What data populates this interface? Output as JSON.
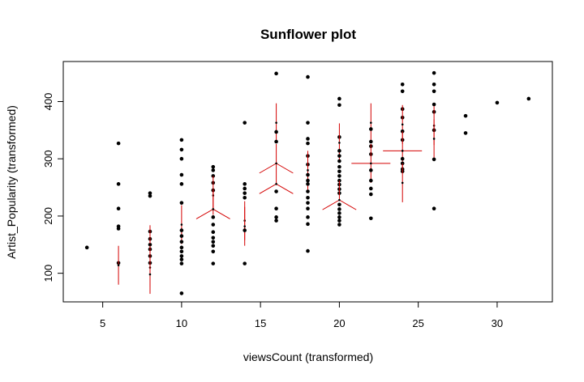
{
  "chart_data": {
    "type": "scatter",
    "subtype": "sunflower",
    "title": "Sunflower plot",
    "xlabel": "viewsCount (transformed)",
    "ylabel": "Artist_Popularity (transformed)",
    "xlim": [
      2.5,
      33.5
    ],
    "ylim": [
      50,
      470
    ],
    "xticks": [
      5,
      10,
      15,
      20,
      25,
      30
    ],
    "yticks": [
      100,
      200,
      300,
      400
    ],
    "grid": false,
    "legend": "none",
    "colors": {
      "point": "#000000",
      "petal": "#d40000",
      "axis": "#000000"
    },
    "points": [
      {
        "x": 4,
        "y": 145,
        "n": 1
      },
      {
        "x": 6,
        "y": 327,
        "n": 1
      },
      {
        "x": 6,
        "y": 256,
        "n": 1
      },
      {
        "x": 6,
        "y": 213,
        "n": 1
      },
      {
        "x": 6,
        "y": 182,
        "n": 1
      },
      {
        "x": 6,
        "y": 178,
        "n": 1
      },
      {
        "x": 6,
        "y": 118,
        "n": 1
      },
      {
        "x": 6,
        "y": 114,
        "n": 2
      },
      {
        "x": 8,
        "y": 240,
        "n": 1
      },
      {
        "x": 8,
        "y": 235,
        "n": 1
      },
      {
        "x": 8,
        "y": 173,
        "n": 1
      },
      {
        "x": 8,
        "y": 160,
        "n": 1
      },
      {
        "x": 8,
        "y": 150,
        "n": 1
      },
      {
        "x": 8,
        "y": 142,
        "n": 1
      },
      {
        "x": 8,
        "y": 130,
        "n": 1
      },
      {
        "x": 8,
        "y": 118,
        "n": 1
      },
      {
        "x": 8,
        "y": 110,
        "n": 2
      },
      {
        "x": 8,
        "y": 98,
        "n": 2
      },
      {
        "x": 8,
        "y": 150,
        "n": 2
      },
      {
        "x": 10,
        "y": 333,
        "n": 1
      },
      {
        "x": 10,
        "y": 316,
        "n": 1
      },
      {
        "x": 10,
        "y": 300,
        "n": 1
      },
      {
        "x": 10,
        "y": 272,
        "n": 1
      },
      {
        "x": 10,
        "y": 256,
        "n": 1
      },
      {
        "x": 10,
        "y": 223,
        "n": 1
      },
      {
        "x": 10,
        "y": 185,
        "n": 2
      },
      {
        "x": 10,
        "y": 175,
        "n": 1
      },
      {
        "x": 10,
        "y": 165,
        "n": 1
      },
      {
        "x": 10,
        "y": 155,
        "n": 1
      },
      {
        "x": 10,
        "y": 145,
        "n": 1
      },
      {
        "x": 10,
        "y": 138,
        "n": 1
      },
      {
        "x": 10,
        "y": 130,
        "n": 1
      },
      {
        "x": 10,
        "y": 124,
        "n": 1
      },
      {
        "x": 10,
        "y": 117,
        "n": 1
      },
      {
        "x": 10,
        "y": 65,
        "n": 1
      },
      {
        "x": 12,
        "y": 286,
        "n": 1
      },
      {
        "x": 12,
        "y": 280,
        "n": 1
      },
      {
        "x": 12,
        "y": 270,
        "n": 1
      },
      {
        "x": 12,
        "y": 258,
        "n": 1
      },
      {
        "x": 12,
        "y": 245,
        "n": 1
      },
      {
        "x": 12,
        "y": 236,
        "n": 2
      },
      {
        "x": 12,
        "y": 212,
        "n": 3
      },
      {
        "x": 12,
        "y": 198,
        "n": 1
      },
      {
        "x": 12,
        "y": 185,
        "n": 1
      },
      {
        "x": 12,
        "y": 172,
        "n": 1
      },
      {
        "x": 12,
        "y": 162,
        "n": 1
      },
      {
        "x": 12,
        "y": 155,
        "n": 1
      },
      {
        "x": 12,
        "y": 148,
        "n": 1
      },
      {
        "x": 12,
        "y": 138,
        "n": 1
      },
      {
        "x": 12,
        "y": 117,
        "n": 1
      },
      {
        "x": 14,
        "y": 363,
        "n": 1
      },
      {
        "x": 14,
        "y": 256,
        "n": 1
      },
      {
        "x": 14,
        "y": 248,
        "n": 1
      },
      {
        "x": 14,
        "y": 240,
        "n": 1
      },
      {
        "x": 14,
        "y": 232,
        "n": 1
      },
      {
        "x": 14,
        "y": 192,
        "n": 2
      },
      {
        "x": 14,
        "y": 182,
        "n": 2
      },
      {
        "x": 14,
        "y": 175,
        "n": 1
      },
      {
        "x": 14,
        "y": 117,
        "n": 1
      },
      {
        "x": 16,
        "y": 449,
        "n": 1
      },
      {
        "x": 16,
        "y": 363,
        "n": 2
      },
      {
        "x": 16,
        "y": 347,
        "n": 1
      },
      {
        "x": 16,
        "y": 330,
        "n": 1
      },
      {
        "x": 16,
        "y": 292,
        "n": 3
      },
      {
        "x": 16,
        "y": 256,
        "n": 3
      },
      {
        "x": 16,
        "y": 243,
        "n": 1
      },
      {
        "x": 16,
        "y": 213,
        "n": 1
      },
      {
        "x": 16,
        "y": 198,
        "n": 1
      },
      {
        "x": 16,
        "y": 192,
        "n": 1
      },
      {
        "x": 18,
        "y": 443,
        "n": 1
      },
      {
        "x": 18,
        "y": 363,
        "n": 1
      },
      {
        "x": 18,
        "y": 335,
        "n": 1
      },
      {
        "x": 18,
        "y": 327,
        "n": 1
      },
      {
        "x": 18,
        "y": 305,
        "n": 1
      },
      {
        "x": 18,
        "y": 290,
        "n": 1
      },
      {
        "x": 18,
        "y": 280,
        "n": 2
      },
      {
        "x": 18,
        "y": 272,
        "n": 1
      },
      {
        "x": 18,
        "y": 262,
        "n": 1
      },
      {
        "x": 18,
        "y": 256,
        "n": 1
      },
      {
        "x": 18,
        "y": 243,
        "n": 1
      },
      {
        "x": 18,
        "y": 232,
        "n": 1
      },
      {
        "x": 18,
        "y": 223,
        "n": 1
      },
      {
        "x": 18,
        "y": 213,
        "n": 1
      },
      {
        "x": 18,
        "y": 198,
        "n": 1
      },
      {
        "x": 18,
        "y": 186,
        "n": 1
      },
      {
        "x": 18,
        "y": 139,
        "n": 1
      },
      {
        "x": 20,
        "y": 405,
        "n": 1
      },
      {
        "x": 20,
        "y": 394,
        "n": 1
      },
      {
        "x": 20,
        "y": 338,
        "n": 1
      },
      {
        "x": 20,
        "y": 328,
        "n": 2
      },
      {
        "x": 20,
        "y": 314,
        "n": 1
      },
      {
        "x": 20,
        "y": 305,
        "n": 1
      },
      {
        "x": 20,
        "y": 296,
        "n": 1
      },
      {
        "x": 20,
        "y": 286,
        "n": 1
      },
      {
        "x": 20,
        "y": 278,
        "n": 1
      },
      {
        "x": 20,
        "y": 270,
        "n": 1
      },
      {
        "x": 20,
        "y": 262,
        "n": 1
      },
      {
        "x": 20,
        "y": 255,
        "n": 1
      },
      {
        "x": 20,
        "y": 247,
        "n": 1
      },
      {
        "x": 20,
        "y": 240,
        "n": 1
      },
      {
        "x": 20,
        "y": 228,
        "n": 3
      },
      {
        "x": 20,
        "y": 220,
        "n": 1
      },
      {
        "x": 20,
        "y": 212,
        "n": 1
      },
      {
        "x": 20,
        "y": 205,
        "n": 1
      },
      {
        "x": 20,
        "y": 198,
        "n": 1
      },
      {
        "x": 20,
        "y": 192,
        "n": 1
      },
      {
        "x": 20,
        "y": 185,
        "n": 1
      },
      {
        "x": 22,
        "y": 363,
        "n": 2
      },
      {
        "x": 22,
        "y": 352,
        "n": 1
      },
      {
        "x": 22,
        "y": 330,
        "n": 1
      },
      {
        "x": 22,
        "y": 322,
        "n": 1
      },
      {
        "x": 22,
        "y": 308,
        "n": 1
      },
      {
        "x": 22,
        "y": 292,
        "n": 4
      },
      {
        "x": 22,
        "y": 280,
        "n": 1
      },
      {
        "x": 22,
        "y": 262,
        "n": 1
      },
      {
        "x": 22,
        "y": 248,
        "n": 1
      },
      {
        "x": 22,
        "y": 238,
        "n": 1
      },
      {
        "x": 22,
        "y": 196,
        "n": 1
      },
      {
        "x": 24,
        "y": 430,
        "n": 1
      },
      {
        "x": 24,
        "y": 418,
        "n": 1
      },
      {
        "x": 24,
        "y": 387,
        "n": 1
      },
      {
        "x": 24,
        "y": 372,
        "n": 1
      },
      {
        "x": 24,
        "y": 360,
        "n": 2
      },
      {
        "x": 24,
        "y": 348,
        "n": 1
      },
      {
        "x": 24,
        "y": 333,
        "n": 1
      },
      {
        "x": 24,
        "y": 314,
        "n": 4
      },
      {
        "x": 24,
        "y": 300,
        "n": 1
      },
      {
        "x": 24,
        "y": 292,
        "n": 1
      },
      {
        "x": 24,
        "y": 282,
        "n": 1
      },
      {
        "x": 24,
        "y": 278,
        "n": 1
      },
      {
        "x": 24,
        "y": 258,
        "n": 2
      },
      {
        "x": 26,
        "y": 450,
        "n": 1
      },
      {
        "x": 26,
        "y": 430,
        "n": 1
      },
      {
        "x": 26,
        "y": 418,
        "n": 1
      },
      {
        "x": 26,
        "y": 395,
        "n": 1
      },
      {
        "x": 26,
        "y": 382,
        "n": 1
      },
      {
        "x": 26,
        "y": 358,
        "n": 2
      },
      {
        "x": 26,
        "y": 350,
        "n": 1
      },
      {
        "x": 26,
        "y": 335,
        "n": 2
      },
      {
        "x": 26,
        "y": 299,
        "n": 1
      },
      {
        "x": 26,
        "y": 213,
        "n": 1
      },
      {
        "x": 28,
        "y": 375,
        "n": 1
      },
      {
        "x": 28,
        "y": 345,
        "n": 1
      },
      {
        "x": 30,
        "y": 398,
        "n": 1
      },
      {
        "x": 32,
        "y": 405,
        "n": 1
      }
    ]
  }
}
